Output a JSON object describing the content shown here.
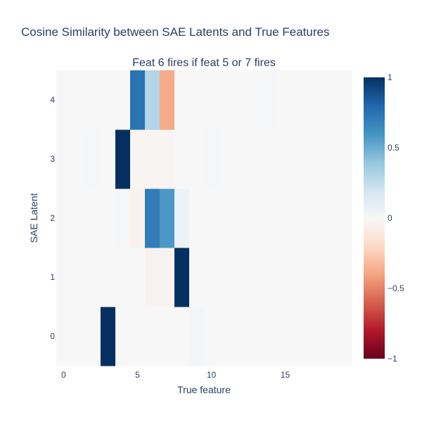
{
  "chart_data": {
    "type": "heatmap",
    "title": "Cosine Similarity between SAE Latents and True Features",
    "subtitle": "Feat 6 fires if feat 5 or 7 fires",
    "xlabel": "True feature",
    "ylabel": "SAE Latent",
    "x": [
      0,
      1,
      2,
      3,
      4,
      5,
      6,
      7,
      8,
      9,
      10,
      11,
      12,
      13,
      14,
      15,
      16,
      17,
      18,
      19
    ],
    "y": [
      0,
      1,
      2,
      3,
      4
    ],
    "x_ticks": [
      0,
      5,
      10,
      15
    ],
    "y_ticks": [
      0,
      1,
      2,
      3,
      4
    ],
    "xlim": [
      -0.5,
      19.5
    ],
    "ylim": [
      -0.5,
      4.5
    ],
    "z": [
      [
        0.0,
        0.0,
        0.0,
        1.0,
        0.0,
        0.0,
        0.0,
        0.0,
        0.0,
        0.02,
        0.0,
        0.0,
        0.0,
        0.0,
        0.0,
        0.0,
        0.0,
        0.0,
        0.0,
        0.0
      ],
      [
        0.0,
        0.0,
        0.0,
        0.0,
        0.0,
        0.0,
        -0.03,
        -0.03,
        1.0,
        0.0,
        0.0,
        0.0,
        0.0,
        0.0,
        0.0,
        0.0,
        0.0,
        0.0,
        0.0,
        0.0
      ],
      [
        0.0,
        0.0,
        0.0,
        0.0,
        0.01,
        -0.04,
        0.7,
        0.58,
        0.06,
        0.0,
        0.0,
        0.0,
        0.0,
        0.0,
        0.0,
        0.0,
        0.0,
        0.0,
        0.0,
        0.0
      ],
      [
        0.0,
        0.0,
        0.01,
        0.0,
        1.0,
        -0.02,
        -0.02,
        -0.02,
        0.0,
        0.0,
        0.01,
        0.0,
        0.0,
        0.0,
        0.0,
        0.0,
        0.0,
        0.0,
        0.0,
        0.0
      ],
      [
        0.0,
        0.0,
        0.0,
        0.0,
        0.0,
        0.74,
        0.3,
        -0.38,
        0.0,
        0.0,
        0.0,
        0.0,
        0.0,
        0.0,
        0.01,
        0.0,
        0.0,
        0.0,
        0.0,
        0.0
      ]
    ],
    "colorscale": "RdBu",
    "zmin": -1,
    "zmax": 1,
    "colorbar_ticks": [
      "1",
      "0.5",
      "0",
      "−0.5",
      "−1"
    ],
    "colorbar_tick_values": [
      1,
      0.5,
      0,
      -0.5,
      -1
    ]
  }
}
